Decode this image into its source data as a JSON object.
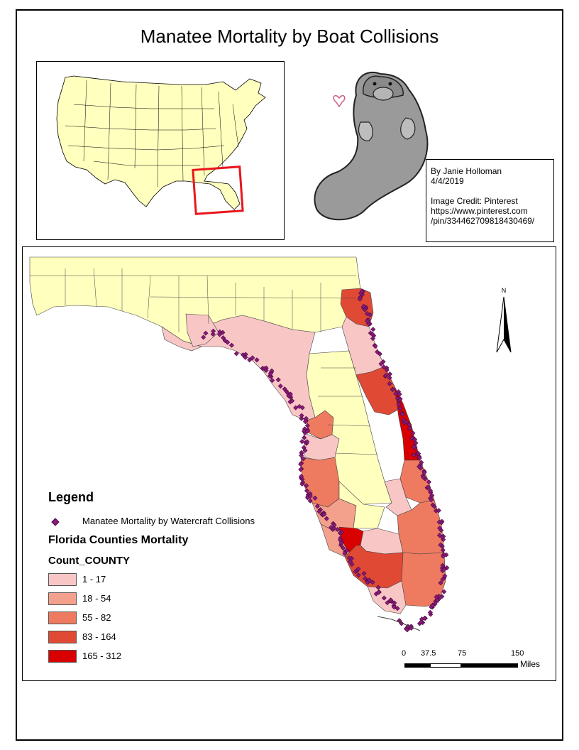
{
  "title": "Manatee Mortality by Boat Collisions",
  "credit": {
    "author": "By Janie Holloman",
    "date": "4/4/2019",
    "image_credit": "Image Credit: Pinterest",
    "url_line1": "https://www.pinterest.com",
    "url_line2": "/pin/334462709818430469/"
  },
  "legend": {
    "title": "Legend",
    "point_layer": "Manatee Mortality by Watercraft Collisions",
    "polygon_layer": "Florida Counties Mortality",
    "field": "Count_COUNTY",
    "classes": [
      {
        "label": "1 - 17",
        "color": "#f9c6c6"
      },
      {
        "label": "18 - 54",
        "color": "#f3a08c"
      },
      {
        "label": "55 - 82",
        "color": "#ee7a60"
      },
      {
        "label": "83 - 164",
        "color": "#e04a35"
      },
      {
        "label": "165 - 312",
        "color": "#d90000"
      }
    ],
    "base_color": "#ffffbe",
    "point_color": "#8b1a7a"
  },
  "scalebar": {
    "ticks": [
      "0",
      "37.5",
      "75",
      "150"
    ],
    "unit": "Miles"
  },
  "north_arrow": {
    "label": "N"
  },
  "inset": {
    "highlight_color": "#e8161c"
  }
}
